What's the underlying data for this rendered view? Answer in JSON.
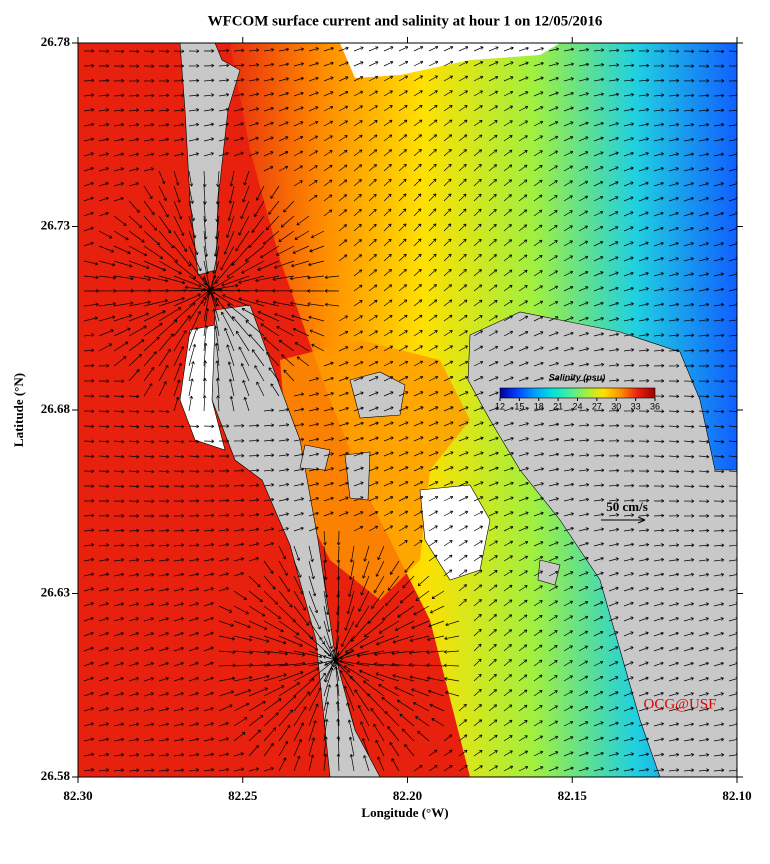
{
  "chart_data": {
    "type": "map",
    "title": "WFCOM surface current and salinity at hour 1 on 12/05/2016",
    "x_label": "Longitude (°W)",
    "y_label": "Latitude (°N)",
    "xlim": [
      82.3,
      82.1
    ],
    "ylim": [
      26.58,
      26.78
    ],
    "xticks": [
      {
        "value": 82.3,
        "label": "82.30"
      },
      {
        "value": 82.25,
        "label": "82.25"
      },
      {
        "value": 82.2,
        "label": "82.20"
      },
      {
        "value": 82.15,
        "label": "82.15"
      },
      {
        "value": 82.1,
        "label": "82.10"
      }
    ],
    "yticks": [
      26.58,
      26.63,
      26.68,
      26.73,
      26.78
    ],
    "colorbar": {
      "title": "Salinity (psu)",
      "range": [
        12,
        36
      ],
      "ticks": [
        12,
        15,
        18,
        21,
        24,
        27,
        30,
        33,
        36
      ],
      "colors": [
        "#0000a0",
        "#0040ff",
        "#00a0ff",
        "#00e0e0",
        "#40f0a0",
        "#a0f040",
        "#ffe000",
        "#ff9000",
        "#e82010",
        "#a00000"
      ]
    },
    "scale_arrow": {
      "label": "50 cm/s"
    },
    "annotation": "OCG@USF"
  }
}
